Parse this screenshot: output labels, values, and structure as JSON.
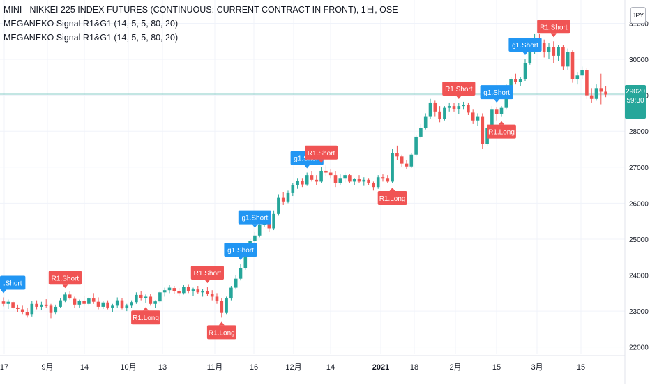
{
  "legend": {
    "title": "MINI - NIKKEI 225 INDEX FUTURES (CONTINUOUS: CURRENT CONTRACT IN FRONT), 1日, OSE",
    "indicator1": "MEGANEKO Signal R1&G1 (14, 5, 5, 80, 20)",
    "indicator2": "MEGANEKO Signal R1&G1 (14, 5, 5, 80, 20)"
  },
  "price_scale": {
    "currency": "JPY"
  },
  "last_price": {
    "value": "29020",
    "countdown": "59:30"
  },
  "colors": {
    "up": "#26a69a",
    "down": "#ef5350",
    "grid": "#f0f3fa",
    "short_blue": "#2196f3",
    "signal_red": "#f05454"
  },
  "chart_data": {
    "type": "candlestick",
    "ylim": [
      21800,
      31300
    ],
    "y_ticks": [
      "22000",
      "23000",
      "24000",
      "25000",
      "26000",
      "27000",
      "28000",
      "29000",
      "30000",
      "31000"
    ],
    "x_ticks": [
      "17",
      "9月",
      "14",
      "10月",
      "13",
      "11月",
      "16",
      "12月",
      "14",
      "2021",
      "18",
      "2月",
      "15",
      "3月",
      "15"
    ],
    "grid": true,
    "ohlc": [
      [
        23270,
        23380,
        23130,
        23200
      ],
      [
        23200,
        23320,
        23060,
        23260
      ],
      [
        23250,
        23300,
        23050,
        23100
      ],
      [
        23100,
        23180,
        22980,
        23060
      ],
      [
        23050,
        23150,
        22900,
        22970
      ],
      [
        22980,
        23080,
        22820,
        22880
      ],
      [
        22900,
        23280,
        22850,
        23200
      ],
      [
        23200,
        23300,
        23050,
        23120
      ],
      [
        23120,
        23260,
        23030,
        23180
      ],
      [
        23180,
        23330,
        23100,
        23140
      ],
      [
        23150,
        23200,
        22800,
        22950
      ],
      [
        22960,
        23180,
        22900,
        23120
      ],
      [
        23120,
        23360,
        23080,
        23300
      ],
      [
        23300,
        23520,
        23250,
        23460
      ],
      [
        23460,
        23550,
        23320,
        23350
      ],
      [
        23340,
        23400,
        23100,
        23180
      ],
      [
        23180,
        23320,
        23100,
        23290
      ],
      [
        23290,
        23420,
        23150,
        23200
      ],
      [
        23200,
        23380,
        23150,
        23350
      ],
      [
        23350,
        23500,
        23200,
        23260
      ],
      [
        23260,
        23380,
        23050,
        23120
      ],
      [
        23120,
        23280,
        23060,
        23240
      ],
      [
        23240,
        23300,
        23050,
        23100
      ],
      [
        23100,
        23200,
        22970,
        23150
      ],
      [
        23150,
        23380,
        23100,
        23300
      ],
      [
        23300,
        23350,
        23050,
        23080
      ],
      [
        23080,
        23200,
        23000,
        23150
      ],
      [
        23150,
        23300,
        23080,
        23250
      ],
      [
        23250,
        23520,
        23200,
        23450
      ],
      [
        23450,
        23550,
        23300,
        23360
      ],
      [
        23360,
        23460,
        23230,
        23400
      ],
      [
        23400,
        23480,
        23150,
        23200
      ],
      [
        23200,
        23300,
        23080,
        23270
      ],
      [
        23270,
        23560,
        23220,
        23520
      ],
      [
        23520,
        23650,
        23400,
        23580
      ],
      [
        23580,
        23720,
        23500,
        23650
      ],
      [
        23640,
        23700,
        23480,
        23560
      ],
      [
        23560,
        23640,
        23420,
        23500
      ],
      [
        23500,
        23720,
        23460,
        23680
      ],
      [
        23680,
        23730,
        23500,
        23560
      ],
      [
        23560,
        23650,
        23420,
        23600
      ],
      [
        23600,
        23700,
        23480,
        23520
      ],
      [
        23520,
        23620,
        23400,
        23560
      ],
      [
        23560,
        23660,
        23420,
        23480
      ],
      [
        23480,
        23580,
        23300,
        23400
      ],
      [
        23400,
        23500,
        23200,
        23280
      ],
      [
        23280,
        23350,
        22820,
        22950
      ],
      [
        22950,
        23400,
        22900,
        23350
      ],
      [
        23350,
        23700,
        23300,
        23650
      ],
      [
        23650,
        24000,
        23600,
        23900
      ],
      [
        23900,
        24300,
        23850,
        24200
      ],
      [
        24200,
        24700,
        24150,
        24600
      ],
      [
        24600,
        25000,
        24550,
        24950
      ],
      [
        24950,
        25200,
        24880,
        25100
      ],
      [
        25100,
        25500,
        25050,
        25400
      ],
      [
        25400,
        25700,
        25350,
        25550
      ],
      [
        25550,
        25680,
        25200,
        25300
      ],
      [
        25300,
        25800,
        25250,
        25700
      ],
      [
        25700,
        26250,
        25650,
        26150
      ],
      [
        26150,
        26300,
        25950,
        26050
      ],
      [
        26050,
        26350,
        26000,
        26280
      ],
      [
        26280,
        26550,
        26200,
        26500
      ],
      [
        26500,
        26700,
        26400,
        26620
      ],
      [
        26620,
        26700,
        26450,
        26520
      ],
      [
        26520,
        26850,
        26480,
        26780
      ],
      [
        26780,
        26900,
        26600,
        26650
      ],
      [
        26650,
        26780,
        26500,
        26600
      ],
      [
        26600,
        27000,
        26550,
        26900
      ],
      [
        26900,
        27050,
        26750,
        26850
      ],
      [
        26850,
        26950,
        26700,
        26780
      ],
      [
        26780,
        26900,
        26450,
        26550
      ],
      [
        26550,
        26800,
        26500,
        26700
      ],
      [
        26700,
        26850,
        26580,
        26780
      ],
      [
        26780,
        26820,
        26550,
        26600
      ],
      [
        26600,
        26700,
        26500,
        26680
      ],
      [
        26680,
        26780,
        26550,
        26600
      ],
      [
        26600,
        26720,
        26480,
        26650
      ],
      [
        26650,
        26700,
        26500,
        26560
      ],
      [
        26560,
        26600,
        26350,
        26450
      ],
      [
        26450,
        26780,
        26400,
        26720
      ],
      [
        26720,
        26800,
        26600,
        26700
      ],
      [
        26700,
        26780,
        26550,
        26600
      ],
      [
        26600,
        27500,
        26550,
        27400
      ],
      [
        27400,
        27600,
        27200,
        27300
      ],
      [
        27300,
        27350,
        27000,
        27100
      ],
      [
        27100,
        27200,
        26950,
        27020
      ],
      [
        27020,
        27400,
        26980,
        27350
      ],
      [
        27350,
        27900,
        27300,
        27850
      ],
      [
        27850,
        28200,
        27800,
        28100
      ],
      [
        28100,
        28500,
        28050,
        28400
      ],
      [
        28400,
        28900,
        28350,
        28800
      ],
      [
        28800,
        28850,
        28400,
        28550
      ],
      [
        28550,
        28700,
        28250,
        28350
      ],
      [
        28350,
        28700,
        28300,
        28650
      ],
      [
        28650,
        28800,
        28550,
        28700
      ],
      [
        28700,
        28800,
        28550,
        28620
      ],
      [
        28620,
        28780,
        28480,
        28700
      ],
      [
        28700,
        28820,
        28600,
        28740
      ],
      [
        28740,
        28800,
        28450,
        28520
      ],
      [
        28520,
        28600,
        28200,
        28300
      ],
      [
        28300,
        28500,
        28150,
        28400
      ],
      [
        28400,
        28500,
        27500,
        27650
      ],
      [
        27650,
        28200,
        27600,
        28100
      ],
      [
        28100,
        28700,
        28050,
        28600
      ],
      [
        28600,
        28680,
        28300,
        28480
      ],
      [
        28480,
        28700,
        28400,
        28650
      ],
      [
        28650,
        29300,
        28600,
        29200
      ],
      [
        29200,
        29500,
        29100,
        29450
      ],
      [
        29450,
        29600,
        29300,
        29380
      ],
      [
        29380,
        29500,
        29250,
        29450
      ],
      [
        29450,
        30000,
        29400,
        29900
      ],
      [
        29900,
        30300,
        29850,
        30200
      ],
      [
        30200,
        30700,
        30150,
        30600
      ],
      [
        30600,
        30700,
        30300,
        30450
      ],
      [
        30450,
        30550,
        30050,
        30200
      ],
      [
        30200,
        30450,
        30000,
        30350
      ],
      [
        30350,
        30500,
        29900,
        30100
      ],
      [
        30100,
        30400,
        29950,
        30350
      ],
      [
        30350,
        30400,
        29700,
        29800
      ],
      [
        29800,
        30300,
        29700,
        30200
      ],
      [
        30200,
        30250,
        29350,
        29450
      ],
      [
        29450,
        29650,
        29300,
        29550
      ],
      [
        29550,
        29800,
        29450,
        29700
      ],
      [
        29700,
        29750,
        28900,
        29000
      ],
      [
        29000,
        29200,
        28800,
        28900
      ],
      [
        28900,
        29300,
        28850,
        29200
      ],
      [
        29200,
        29600,
        28750,
        29100
      ],
      [
        29100,
        29250,
        28950,
        29020
      ]
    ],
    "signals": [
      {
        "text": ".Short",
        "color": "blue",
        "i": 0,
        "pos": "above"
      },
      {
        "text": "R1.Short",
        "color": "red",
        "i": 13,
        "pos": "above"
      },
      {
        "text": "R1.Long",
        "color": "red",
        "i": 30,
        "pos": "below"
      },
      {
        "text": "R1.Short",
        "color": "red",
        "i": 43,
        "pos": "above"
      },
      {
        "text": "R1.Long",
        "color": "red",
        "i": 46,
        "pos": "below"
      },
      {
        "text": "g1.Short",
        "color": "blue",
        "i": 50,
        "pos": "above"
      },
      {
        "text": "g1.Short",
        "color": "blue",
        "i": 53,
        "pos": "above"
      },
      {
        "text": "g1.Short",
        "color": "blue",
        "i": 64,
        "pos": "above"
      },
      {
        "text": "R1.Short",
        "color": "red",
        "i": 67,
        "pos": "above"
      },
      {
        "text": "R1.Long",
        "color": "red",
        "i": 82,
        "pos": "below"
      },
      {
        "text": "R1.Short",
        "color": "red",
        "i": 96,
        "pos": "above"
      },
      {
        "text": "R1.Long",
        "color": "red",
        "i": 105,
        "pos": "below"
      },
      {
        "text": "g1.Short",
        "color": "blue",
        "i": 104,
        "pos": "above"
      },
      {
        "text": "g1.Short",
        "color": "blue",
        "i": 110,
        "pos": "above"
      },
      {
        "text": "R1.Short",
        "color": "red",
        "i": 116,
        "pos": "above"
      }
    ]
  }
}
